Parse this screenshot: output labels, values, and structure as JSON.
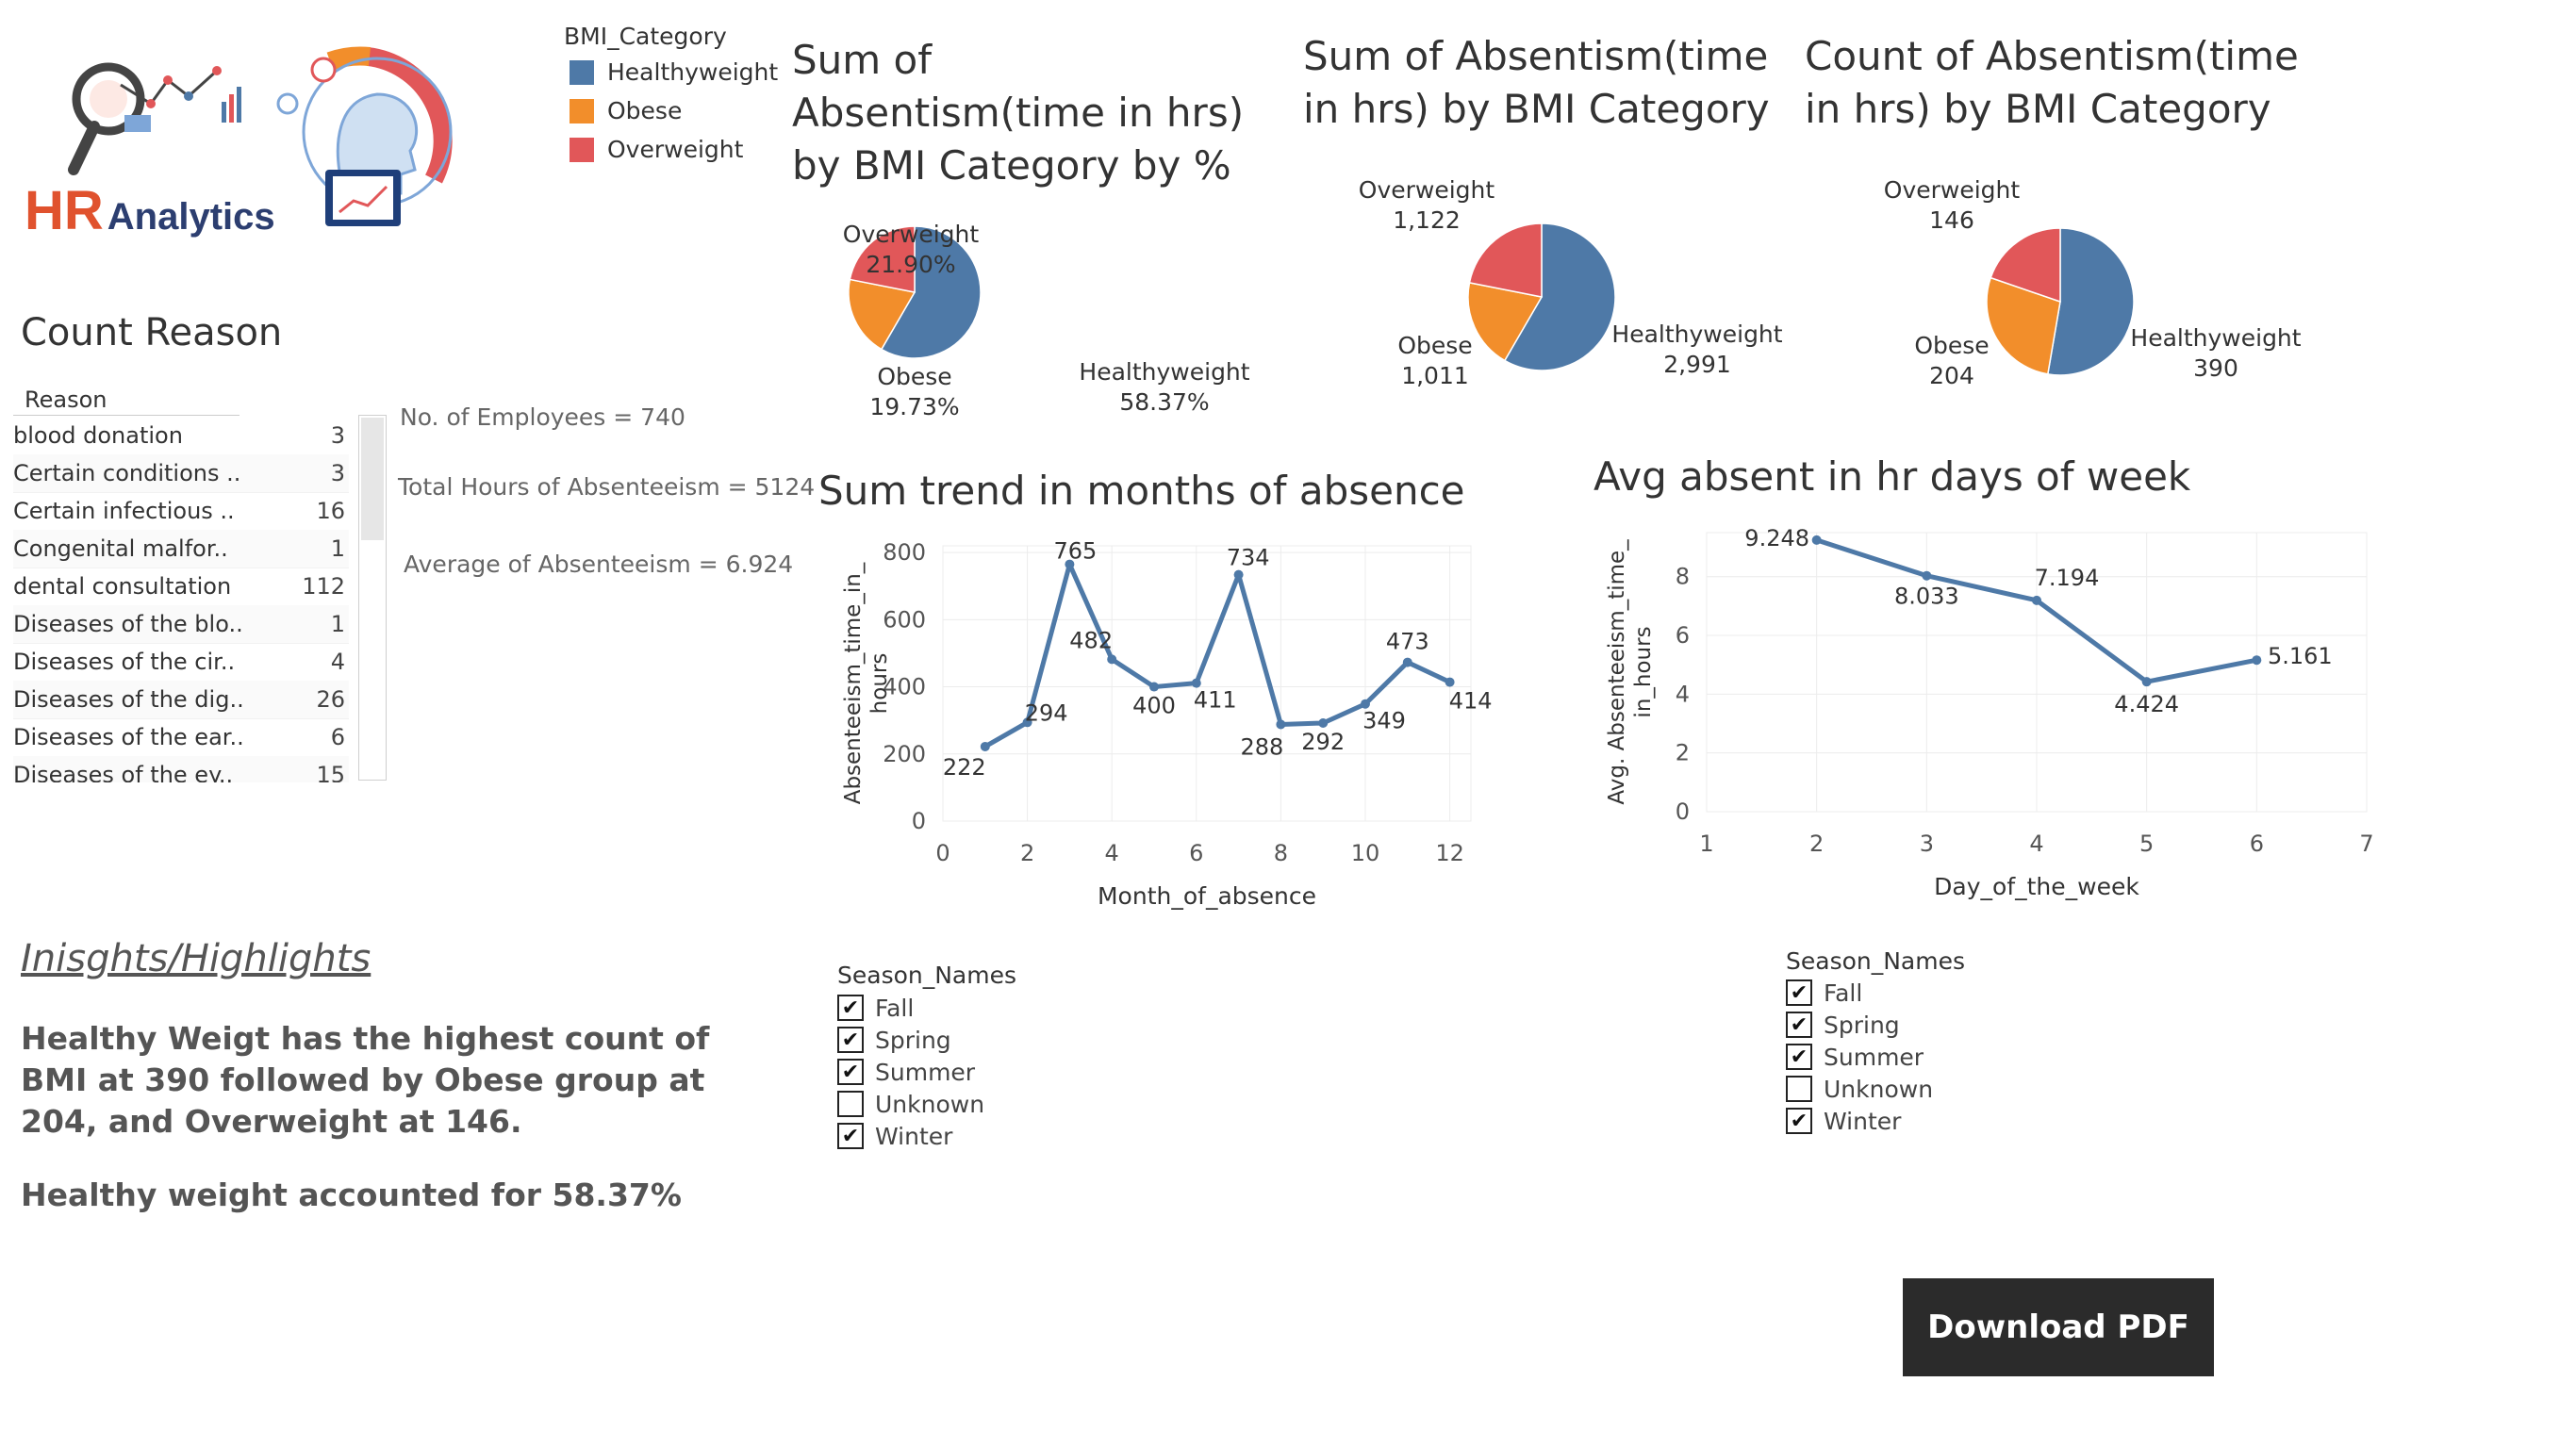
{
  "logo": {
    "text_hr": "HR",
    "text_analytics": "Analytics"
  },
  "legend": {
    "title": "BMI_Category",
    "items": [
      {
        "label": "Healthyweight",
        "color": "#4e79a7"
      },
      {
        "label": "Obese",
        "color": "#f28e2b"
      },
      {
        "label": "Overweight",
        "color": "#e15759"
      }
    ]
  },
  "reasons": {
    "title": "Count Reason",
    "header": "Reason",
    "rows": [
      {
        "label": "blood donation",
        "value": "3"
      },
      {
        "label": "Certain conditions ..",
        "value": "3"
      },
      {
        "label": "Certain infectious ..",
        "value": "16"
      },
      {
        "label": "Congenital malfor..",
        "value": "1"
      },
      {
        "label": "dental consultation",
        "value": "112"
      },
      {
        "label": "Diseases of the blo..",
        "value": "1"
      },
      {
        "label": "Diseases of the cir..",
        "value": "4"
      },
      {
        "label": "Diseases of the dig..",
        "value": "26"
      },
      {
        "label": "Diseases of the ear..",
        "value": "6"
      },
      {
        "label": "Diseases of the ey..",
        "value": "15"
      }
    ]
  },
  "kpis": {
    "employees": "No. of Employees = 740",
    "total_hours": "Total Hours of Absenteeism =  5124",
    "average": "Average of Absenteeism  = 6.924"
  },
  "insights": {
    "heading": "Inisghts/Highlights",
    "p1": "Healthy Weigt has the highest count of BMI at 390 followed by Obese group at 204, and Overweight at 146.",
    "p2": "Healthy weight accounted for 58.37%"
  },
  "season_filter_1": {
    "title": "Season_Names",
    "items": [
      {
        "label": "Fall",
        "checked": true
      },
      {
        "label": "Spring",
        "checked": true
      },
      {
        "label": "Summer",
        "checked": true
      },
      {
        "label": "Unknown",
        "checked": false
      },
      {
        "label": "Winter",
        "checked": true
      }
    ]
  },
  "season_filter_2": {
    "title": "Season_Names",
    "items": [
      {
        "label": "Fall",
        "checked": true
      },
      {
        "label": "Spring",
        "checked": true
      },
      {
        "label": "Summer",
        "checked": true
      },
      {
        "label": "Unknown",
        "checked": false
      },
      {
        "label": "Winter",
        "checked": true
      }
    ]
  },
  "download_button": "Download PDF",
  "chart_data": [
    {
      "type": "pie",
      "title": "Sum of Absentism(time in hrs) by BMI Category by %",
      "slices": [
        {
          "label": "Healthyweight",
          "value": 58.37,
          "display": "58.37%",
          "color": "#4e79a7"
        },
        {
          "label": "Obese",
          "value": 19.73,
          "display": "19.73%",
          "color": "#f28e2b"
        },
        {
          "label": "Overweight",
          "value": 21.9,
          "display": "21.90%",
          "color": "#e15759"
        }
      ]
    },
    {
      "type": "pie",
      "title": "Sum of Absentism(time in hrs) by BMI Category",
      "slices": [
        {
          "label": "Healthyweight",
          "value": 2991,
          "display": "2,991",
          "color": "#4e79a7"
        },
        {
          "label": "Obese",
          "value": 1011,
          "display": "1,011",
          "color": "#f28e2b"
        },
        {
          "label": "Overweight",
          "value": 1122,
          "display": "1,122",
          "color": "#e15759"
        }
      ]
    },
    {
      "type": "pie",
      "title": "Count of Absentism(time in hrs) by BMI Category",
      "slices": [
        {
          "label": "Healthyweight",
          "value": 390,
          "display": "390",
          "color": "#4e79a7"
        },
        {
          "label": "Obese",
          "value": 204,
          "display": "204",
          "color": "#f28e2b"
        },
        {
          "label": "Overweight",
          "value": 146,
          "display": "146",
          "color": "#e15759"
        }
      ]
    },
    {
      "type": "line",
      "title": "Sum trend in months of absence",
      "xlabel": "Month_of_absence",
      "ylabel": "Absenteeism_time_in_hours",
      "xlim": [
        0,
        12.5
      ],
      "ylim": [
        0,
        820
      ],
      "xticks": [
        0,
        2,
        4,
        6,
        8,
        10,
        12
      ],
      "yticks": [
        0,
        200,
        400,
        600,
        800
      ],
      "x": [
        1,
        2,
        3,
        4,
        5,
        6,
        7,
        8,
        9,
        10,
        11,
        12
      ],
      "y": [
        222,
        294,
        765,
        482,
        400,
        411,
        734,
        288,
        292,
        349,
        473,
        414
      ],
      "color": "#4e79a7",
      "grid": true
    },
    {
      "type": "line",
      "title": "Avg absent in hr days of week",
      "xlabel": "Day_of_the_week",
      "ylabel": "Avg. Absenteeism_time_in_hours",
      "xlim": [
        1,
        7
      ],
      "ylim": [
        0,
        9.5
      ],
      "xticks": [
        1,
        2,
        3,
        4,
        5,
        6,
        7
      ],
      "yticks": [
        0,
        2,
        4,
        6,
        8
      ],
      "x": [
        2,
        3,
        4,
        5,
        6
      ],
      "y": [
        9.248,
        8.033,
        7.194,
        4.424,
        5.161
      ],
      "color": "#4e79a7",
      "grid": true
    }
  ]
}
